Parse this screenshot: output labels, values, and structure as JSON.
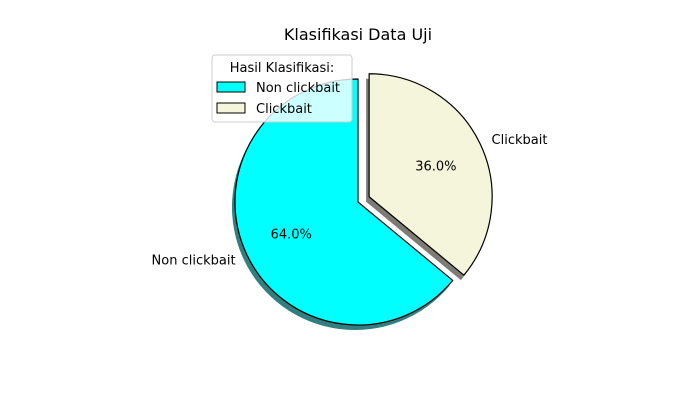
{
  "chart_data": {
    "type": "pie",
    "title": "Klasifikasi Data Uji",
    "slices": [
      {
        "label": "Non clickbait",
        "value": 64.0,
        "pct_label": "64.0%",
        "color": "#00ffff",
        "explode": 0
      },
      {
        "label": "Clickbait",
        "value": 36.0,
        "pct_label": "36.0%",
        "color": "#f5f5dc",
        "explode": 0.1
      }
    ],
    "start_angle_deg": 90,
    "direction": "counterclockwise",
    "shadow": true,
    "edge_color": "#000000",
    "legend": {
      "title": "Hasil Klasifikasi:",
      "placement": "upper-left",
      "entries": [
        "Non clickbait",
        "Clickbait"
      ]
    }
  }
}
